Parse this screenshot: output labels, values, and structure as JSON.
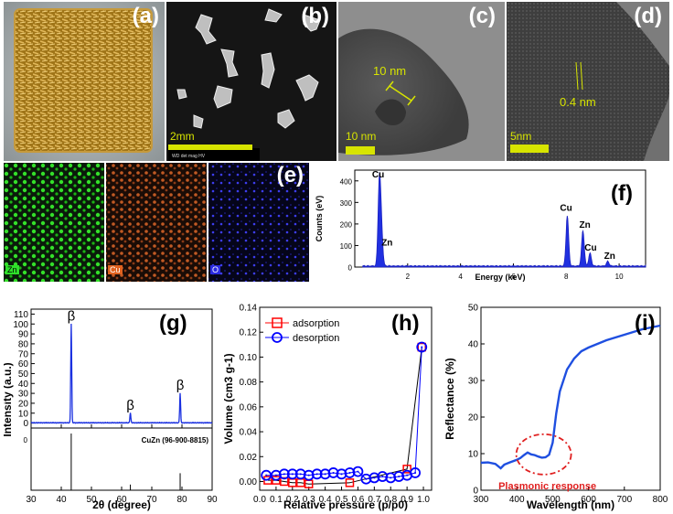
{
  "panels": {
    "a": {
      "label": "(a)"
    },
    "b": {
      "label": "(b)",
      "scale": "2mm"
    },
    "c": {
      "label": "(c)",
      "scale": "10 nm",
      "annotation": "10 nm"
    },
    "d": {
      "label": "(d)",
      "scale": "5nm",
      "annotation": "0.4 nm"
    },
    "e": {
      "label": "(e)",
      "maps": [
        "Zn",
        "Cu",
        "O"
      ]
    },
    "f": {
      "label": "(f)"
    },
    "g": {
      "label": "(g)"
    },
    "h": {
      "label": "(h)"
    },
    "i": {
      "label": "(i)",
      "annotation": "Plasmonic response"
    }
  },
  "chart_data": [
    {
      "type": "line",
      "panel": "f",
      "title": "",
      "xlabel": "Energy (keV)",
      "ylabel": "Counts (eV)",
      "xlim": [
        0,
        11
      ],
      "ylim": [
        0,
        450
      ],
      "xticks": [
        2,
        4,
        6,
        8,
        10
      ],
      "yticks": [
        0,
        100,
        200,
        300,
        400
      ],
      "peaks": [
        {
          "x": 0.93,
          "y": 390,
          "label": "Cu"
        },
        {
          "x": 1.01,
          "y": 150,
          "label": "Zn"
        },
        {
          "x": 8.04,
          "y": 235,
          "label": "Cu"
        },
        {
          "x": 8.63,
          "y": 165,
          "label": "Zn"
        },
        {
          "x": 8.9,
          "y": 60,
          "label": "Cu"
        },
        {
          "x": 9.57,
          "y": 22,
          "label": "Zn"
        }
      ]
    },
    {
      "type": "line",
      "panel": "g",
      "title": "",
      "xlabel": "2θ (degree)",
      "ylabel": "Intensity (a.u.)",
      "xlim": [
        30,
        90
      ],
      "ylim": [
        -5,
        115
      ],
      "xticks": [
        30,
        40,
        50,
        60,
        70,
        80,
        90
      ],
      "yticks": [
        0,
        10,
        20,
        30,
        40,
        50,
        60,
        70,
        80,
        90,
        100,
        110
      ],
      "peaks": [
        {
          "x": 43.3,
          "y": 100,
          "label": "β"
        },
        {
          "x": 62.9,
          "y": 10,
          "label": "β"
        },
        {
          "x": 79.4,
          "y": 30,
          "label": "β"
        }
      ],
      "reference": {
        "name": "CuZn (96-900-8815)",
        "lines": [
          43.3,
          62.9,
          79.4
        ],
        "heights": [
          100,
          10,
          30
        ],
        "ytick": "0"
      }
    },
    {
      "type": "scatter",
      "panel": "h",
      "title": "",
      "xlabel": "Relative pressure (p/p0)",
      "ylabel": "Volume (cm3 g-1)",
      "xlim": [
        0,
        1.05
      ],
      "ylim": [
        -0.007,
        0.14
      ],
      "xticks": [
        0.0,
        0.1,
        0.2,
        0.3,
        0.4,
        0.5,
        0.6,
        0.7,
        0.8,
        0.9,
        1.0
      ],
      "yticks": [
        0.0,
        0.02,
        0.04,
        0.06,
        0.08,
        0.1,
        0.12,
        0.14
      ],
      "legend": "top-left",
      "series": [
        {
          "name": "adsorption",
          "color": "#ff0000",
          "marker": "square",
          "x": [
            0.05,
            0.1,
            0.15,
            0.2,
            0.25,
            0.3,
            0.55,
            0.9,
            0.99
          ],
          "y": [
            0.001,
            0.001,
            0.0,
            -0.001,
            -0.001,
            -0.002,
            -0.001,
            0.01,
            0.108
          ]
        },
        {
          "name": "desorption",
          "color": "#0000ff",
          "marker": "circle",
          "x": [
            0.04,
            0.1,
            0.15,
            0.2,
            0.25,
            0.3,
            0.35,
            0.4,
            0.45,
            0.5,
            0.55,
            0.6,
            0.65,
            0.7,
            0.75,
            0.8,
            0.85,
            0.9,
            0.95,
            0.99
          ],
          "y": [
            0.005,
            0.005,
            0.006,
            0.006,
            0.006,
            0.005,
            0.006,
            0.006,
            0.007,
            0.006,
            0.007,
            0.008,
            0.002,
            0.003,
            0.004,
            0.003,
            0.004,
            0.005,
            0.007,
            0.108
          ]
        }
      ]
    },
    {
      "type": "line",
      "panel": "i",
      "title": "",
      "xlabel": "Wavelength (nm)",
      "ylabel": "Reflectance (%)",
      "xlim": [
        300,
        800
      ],
      "ylim": [
        0,
        50
      ],
      "xticks": [
        300,
        400,
        500,
        600,
        700,
        800
      ],
      "yticks": [
        0,
        10,
        20,
        30,
        40,
        50
      ],
      "series": [
        {
          "name": "",
          "color": "#1f4fe0",
          "x": [
            300,
            320,
            340,
            355,
            365,
            380,
            400,
            410,
            420,
            430,
            440,
            450,
            460,
            470,
            480,
            490,
            500,
            510,
            520,
            540,
            560,
            580,
            600,
            650,
            700,
            750,
            800
          ],
          "y": [
            7.5,
            7.6,
            7.2,
            6.0,
            7.0,
            7.6,
            8.3,
            8.8,
            9.6,
            10.3,
            9.8,
            9.6,
            9.2,
            8.9,
            9.0,
            9.7,
            13,
            21,
            27,
            33,
            36,
            38,
            39,
            41,
            42.5,
            44,
            45
          ]
        }
      ]
    }
  ]
}
